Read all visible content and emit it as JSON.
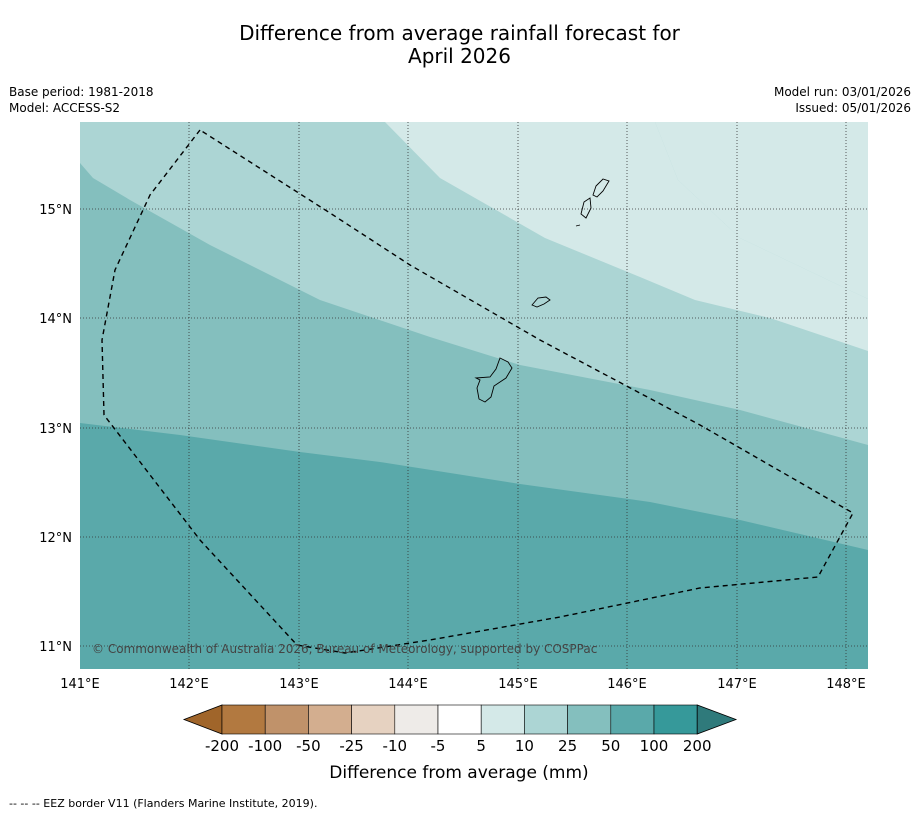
{
  "title": {
    "line1": "Difference from average rainfall forecast for",
    "line2": "April 2026"
  },
  "meta": {
    "base_period": "Base period: 1981-2018",
    "model": "Model: ACCESS-S2",
    "model_run": "Model run: 03/01/2026",
    "issued": "Issued: 05/01/2026"
  },
  "map": {
    "lat_labels": [
      "15°N",
      "14°N",
      "13°N",
      "12°N",
      "11°N"
    ],
    "lon_labels": [
      "141°E",
      "142°E",
      "143°E",
      "144°E",
      "145°E",
      "146°E",
      "147°E",
      "148°E"
    ],
    "copyright": "© Commonwealth of Australia 2026, Bureau of Meteorology, supported by COSPPac",
    "region_colors": {
      "band_5_10": "#d4e9e8",
      "band_10_25": "#acd5d4",
      "band_25_50": "#84bfbe",
      "band_50_100": "#5aa9aa"
    }
  },
  "colorbar": {
    "labels": [
      "-200",
      "-100",
      "-50",
      "-25",
      "-10",
      "-5",
      "5",
      "10",
      "25",
      "50",
      "100",
      "200"
    ],
    "colors": [
      "#a0652a",
      "#b27940",
      "#c0926a",
      "#d3ae8f",
      "#e6d2c1",
      "#eeebe8",
      "#ffffff",
      "#d4e9e8",
      "#acd5d4",
      "#84bfbe",
      "#5aa9aa",
      "#36999a",
      "#2f7a7b"
    ],
    "title": "Difference from average (mm)"
  },
  "footer": "-- -- -- EEZ border V11 (Flanders Marine Institute, 2019)."
}
